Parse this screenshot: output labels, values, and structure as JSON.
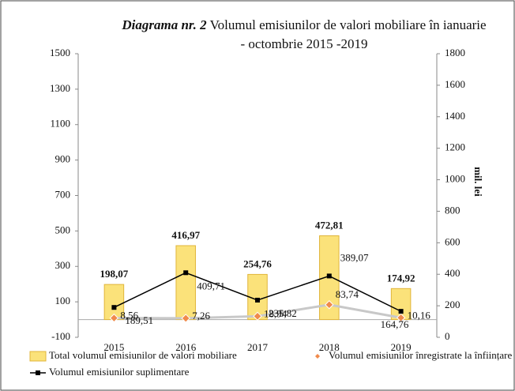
{
  "chart_data": {
    "type": "bar_line",
    "title_prefix": "Diagrama nr. 2",
    "title": "Volumul emisiunilor de valori mobiliare în ianuarie - octombrie 2015 -2019",
    "y2label": "mil. lei",
    "categories": [
      "2015",
      "2016",
      "2017",
      "2018",
      "2019"
    ],
    "ylim": [
      -100,
      1500
    ],
    "yticks": [
      -100,
      100,
      300,
      500,
      700,
      900,
      1100,
      1300,
      1500
    ],
    "y2lim": [
      0,
      1800
    ],
    "y2ticks": [
      0,
      200,
      400,
      600,
      800,
      1000,
      1200,
      1400,
      1600,
      1800
    ],
    "series": [
      {
        "name": "Total volumul emisiunilor de valori mobiliare",
        "kind": "bar",
        "color": "#fbe27a",
        "values": [
          198.07,
          416.97,
          254.76,
          472.81,
          174.92
        ],
        "value_labels": [
          "198,07",
          "416,97",
          "254,76",
          "472,81",
          "174,92"
        ]
      },
      {
        "name": "Volumul emisiunilor înregistrate la înființare",
        "kind": "point",
        "color": "#f08a4b",
        "values": [
          8.56,
          7.26,
          18.94,
          83.74,
          10.16
        ],
        "value_labels": [
          "8,56",
          "7,26",
          "18,94",
          "83,74",
          "10,16"
        ]
      },
      {
        "name": "Volumul emisiunilor suplimentare",
        "kind": "line",
        "axis": "y2",
        "color": "#000000",
        "values": [
          189.51,
          409.71,
          235.82,
          389.07,
          164.76
        ],
        "value_labels": [
          "189,51",
          "409,71",
          "235,82",
          "389,07",
          "164,76"
        ]
      }
    ]
  }
}
